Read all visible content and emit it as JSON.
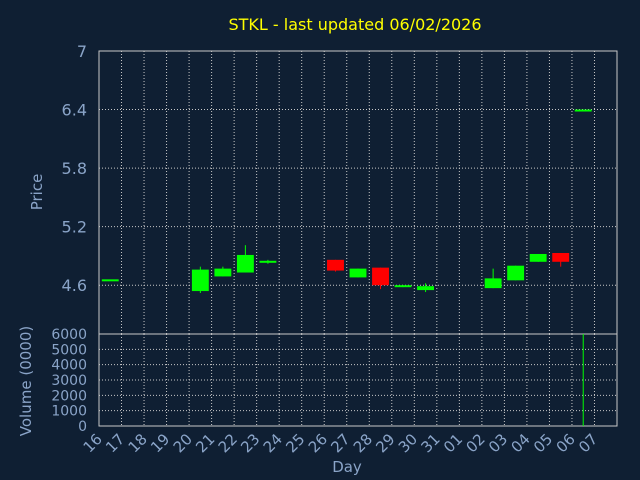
{
  "colors": {
    "background": "#0f1f33",
    "plot_background": "#0f1f33",
    "grid": "#c8c8c8",
    "axis_text": "#8aa4c8",
    "title": "#ffff00",
    "up_candle": "#00ff00",
    "down_candle": "#ff0000",
    "volume_bar": "#00ff00"
  },
  "chart_data": [
    {
      "type": "candlestick",
      "title": "STKL - last updated 06/02/2026",
      "ylabel": "Price",
      "xlabel": "",
      "ylim": [
        4.1,
        7.0
      ],
      "yticks": [
        "4.6",
        "5.2",
        "5.8",
        "6.4",
        "7"
      ],
      "ytick_values": [
        4.6,
        5.2,
        5.8,
        6.4,
        7.0
      ],
      "grid": true,
      "categories": [
        "16",
        "17",
        "18",
        "19",
        "20",
        "21",
        "22",
        "23",
        "24",
        "25",
        "26",
        "27",
        "28",
        "29",
        "30",
        "31",
        "01",
        "02",
        "03",
        "04",
        "05",
        "06",
        "07"
      ],
      "candles": [
        {
          "day": "16",
          "open": 4.65,
          "close": 4.65,
          "high": 4.65,
          "low": 4.65
        },
        {
          "day": "20",
          "open": 4.54,
          "close": 4.76,
          "high": 4.79,
          "low": 4.52
        },
        {
          "day": "21",
          "open": 4.69,
          "close": 4.77,
          "high": 4.79,
          "low": 4.69
        },
        {
          "day": "22",
          "open": 4.73,
          "close": 4.91,
          "high": 5.01,
          "low": 4.73
        },
        {
          "day": "23",
          "open": 4.84,
          "close": 4.84,
          "high": 4.86,
          "low": 4.82
        },
        {
          "day": "26",
          "open": 4.86,
          "close": 4.75,
          "high": 4.86,
          "low": 4.74
        },
        {
          "day": "27",
          "open": 4.68,
          "close": 4.77,
          "high": 4.77,
          "low": 4.68
        },
        {
          "day": "28",
          "open": 4.78,
          "close": 4.6,
          "high": 4.78,
          "low": 4.56
        },
        {
          "day": "29",
          "open": 4.59,
          "close": 4.59,
          "high": 4.6,
          "low": 4.58
        },
        {
          "day": "30",
          "open": 4.55,
          "close": 4.59,
          "high": 4.62,
          "low": 4.53
        },
        {
          "day": "02",
          "open": 4.57,
          "close": 4.67,
          "high": 4.77,
          "low": 4.57
        },
        {
          "day": "03",
          "open": 4.65,
          "close": 4.8,
          "high": 4.8,
          "low": 4.65
        },
        {
          "day": "04",
          "open": 4.84,
          "close": 4.92,
          "high": 4.92,
          "low": 4.84
        },
        {
          "day": "05",
          "open": 4.93,
          "close": 4.84,
          "high": 4.93,
          "low": 4.79
        },
        {
          "day": "06",
          "open": 6.39,
          "close": 6.39,
          "high": 6.4,
          "low": 6.38
        }
      ]
    },
    {
      "type": "bar",
      "ylabel": "Volume (0000)",
      "xlabel": "Day",
      "ylim": [
        0,
        6000
      ],
      "yticks": [
        "0",
        "1000",
        "2000",
        "3000",
        "4000",
        "5000",
        "6000"
      ],
      "ytick_values": [
        0,
        1000,
        2000,
        3000,
        4000,
        5000,
        6000
      ],
      "grid": true,
      "categories": [
        "16",
        "17",
        "18",
        "19",
        "20",
        "21",
        "22",
        "23",
        "24",
        "25",
        "26",
        "27",
        "28",
        "29",
        "30",
        "31",
        "01",
        "02",
        "03",
        "04",
        "05",
        "06",
        "07"
      ],
      "values": [
        0,
        0,
        0,
        0,
        0,
        0,
        0,
        0,
        0,
        0,
        0,
        0,
        0,
        0,
        0,
        0,
        0,
        0,
        0,
        0,
        0,
        6000,
        0
      ]
    }
  ]
}
